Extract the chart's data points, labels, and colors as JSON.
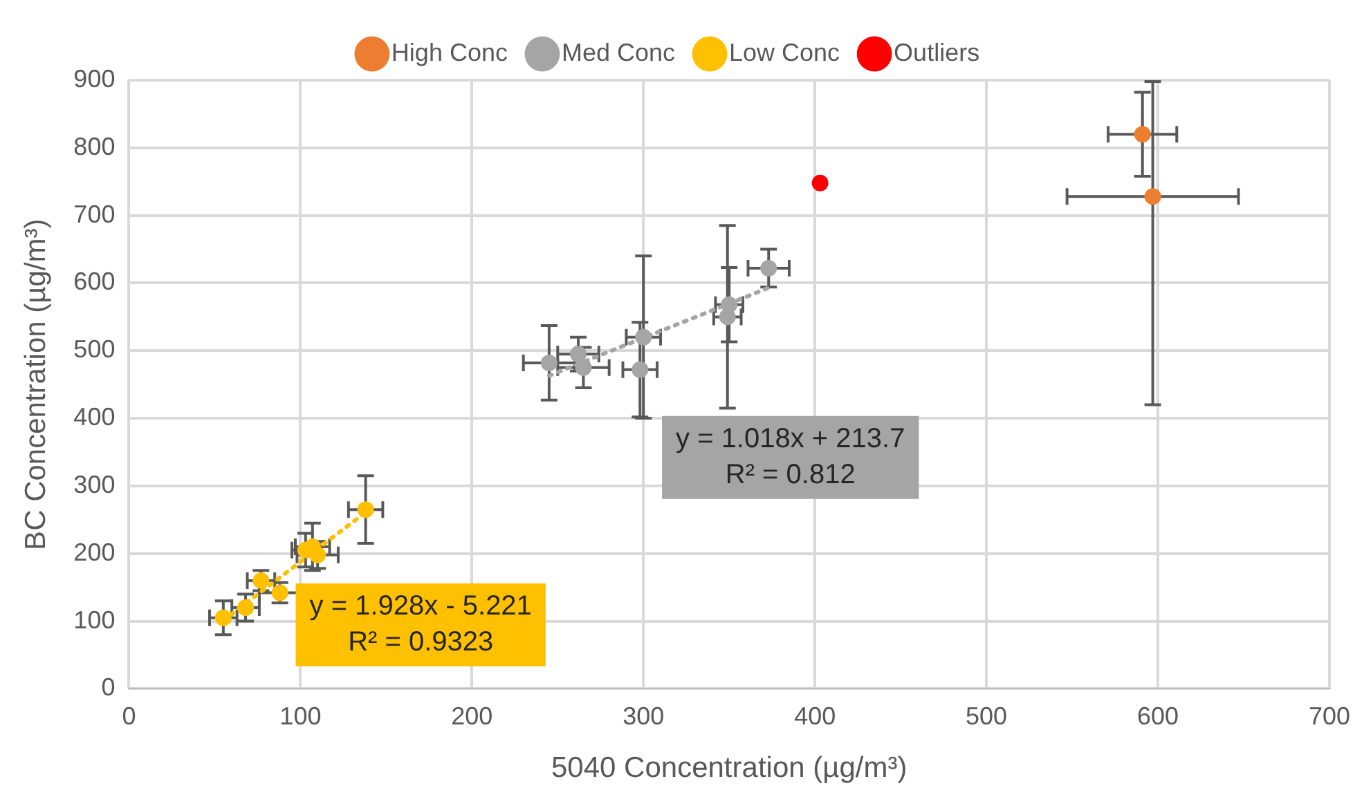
{
  "chart_data": {
    "type": "scatter",
    "xlabel": "5040 Concentration (µg/m³)",
    "ylabel": "BC Concentration (µg/m³)",
    "xlim": [
      0,
      700
    ],
    "xticks": [
      0,
      100,
      200,
      300,
      400,
      500,
      600,
      700
    ],
    "ylim": [
      0,
      900
    ],
    "yticks": [
      0,
      100,
      200,
      300,
      400,
      500,
      600,
      700,
      800,
      900
    ],
    "grid": true,
    "legend": "top",
    "marker": "circle",
    "series": [
      {
        "name": "High Conc",
        "color": "#ed7d31",
        "x": [
          591,
          597
        ],
        "values": [
          820,
          728
        ],
        "xerrors": [
          20,
          50
        ],
        "errors": [
          62,
          [
            420,
            898
          ]
        ]
      },
      {
        "name": "Med Conc",
        "color": "#a5a5a5",
        "x": [
          245,
          262,
          265,
          298,
          300,
          349,
          350,
          373
        ],
        "values": [
          482,
          495,
          475,
          472,
          520,
          550,
          568,
          622
        ],
        "xerrors": [
          15,
          12,
          15,
          10,
          10,
          8,
          8,
          12
        ],
        "errors": [
          55,
          25,
          30,
          70,
          120,
          135,
          55,
          28
        ]
      },
      {
        "name": "Low Conc",
        "color": "#ffc000",
        "x": [
          55,
          68,
          77,
          88,
          103,
          107,
          110,
          138
        ],
        "values": [
          105,
          120,
          160,
          142,
          205,
          210,
          198,
          265
        ],
        "xerrors": [
          8,
          8,
          8,
          12,
          8,
          10,
          12,
          10
        ],
        "errors": [
          25,
          20,
          15,
          15,
          25,
          35,
          20,
          50
        ]
      },
      {
        "name": "Outliers",
        "color": "#ff0000",
        "x": [
          403
        ],
        "values": [
          748
        ]
      },
      {
        "type": "line",
        "color": "#ffc000",
        "line_style": "dotted",
        "marker": "none",
        "x": [
          55,
          138
        ],
        "values": [
          101,
          261
        ]
      },
      {
        "type": "line",
        "color": "#a5a5a5",
        "line_style": "dotted",
        "marker": "none",
        "x": [
          245,
          373
        ],
        "values": [
          463,
          593
        ]
      }
    ],
    "annotations": [
      "y = 1.928x - 5.221\nR² = 0.9323",
      "y = 1.018x + 213.7\nR² = 0.812"
    ]
  }
}
